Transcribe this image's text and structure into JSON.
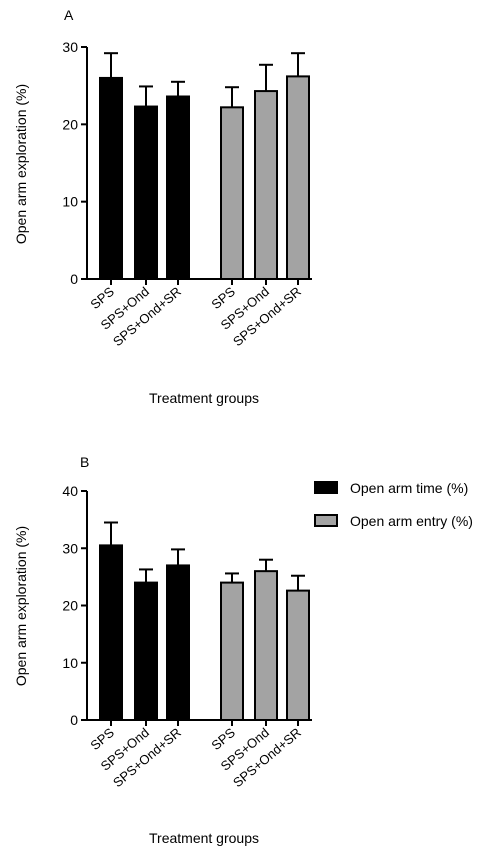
{
  "legend": [
    {
      "label": "Open arm time (%)",
      "color": "#000000"
    },
    {
      "label": "Open arm entry (%)",
      "color": "#a3a3a3"
    }
  ],
  "chart_data": [
    {
      "type": "bar",
      "panel": "A",
      "categories": [
        "SPS",
        "SPS+Ond",
        "SPS+Ond+SR"
      ],
      "series": [
        {
          "name": "Open arm time (%)",
          "color": "#000000",
          "values": [
            26.0,
            22.3,
            23.6
          ],
          "errors": [
            3.2,
            2.6,
            1.9
          ]
        },
        {
          "name": "Open arm entry (%)",
          "color": "#a3a3a3",
          "values": [
            22.2,
            24.3,
            26.2
          ],
          "errors": [
            2.6,
            3.4,
            3.0
          ]
        }
      ],
      "ylabel": "Open arm exploration (%)",
      "xlabel": "Treatment groups",
      "ylim": [
        0,
        30
      ],
      "yticks": [
        0,
        10,
        20,
        30
      ]
    },
    {
      "type": "bar",
      "panel": "B",
      "categories": [
        "SPS",
        "SPS+Ond",
        "SPS+Ond+SR"
      ],
      "series": [
        {
          "name": "Open arm time (%)",
          "color": "#000000",
          "values": [
            30.5,
            24.0,
            27.0
          ],
          "errors": [
            4.0,
            2.3,
            2.8
          ]
        },
        {
          "name": "Open arm entry (%)",
          "color": "#a3a3a3",
          "values": [
            24.0,
            26.0,
            22.6
          ],
          "errors": [
            1.6,
            2.0,
            2.6
          ]
        }
      ],
      "ylabel": "Open arm exploration (%)",
      "xlabel": "Treatment groups",
      "ylim": [
        0,
        40
      ],
      "yticks": [
        0,
        10,
        20,
        30,
        40
      ]
    }
  ]
}
